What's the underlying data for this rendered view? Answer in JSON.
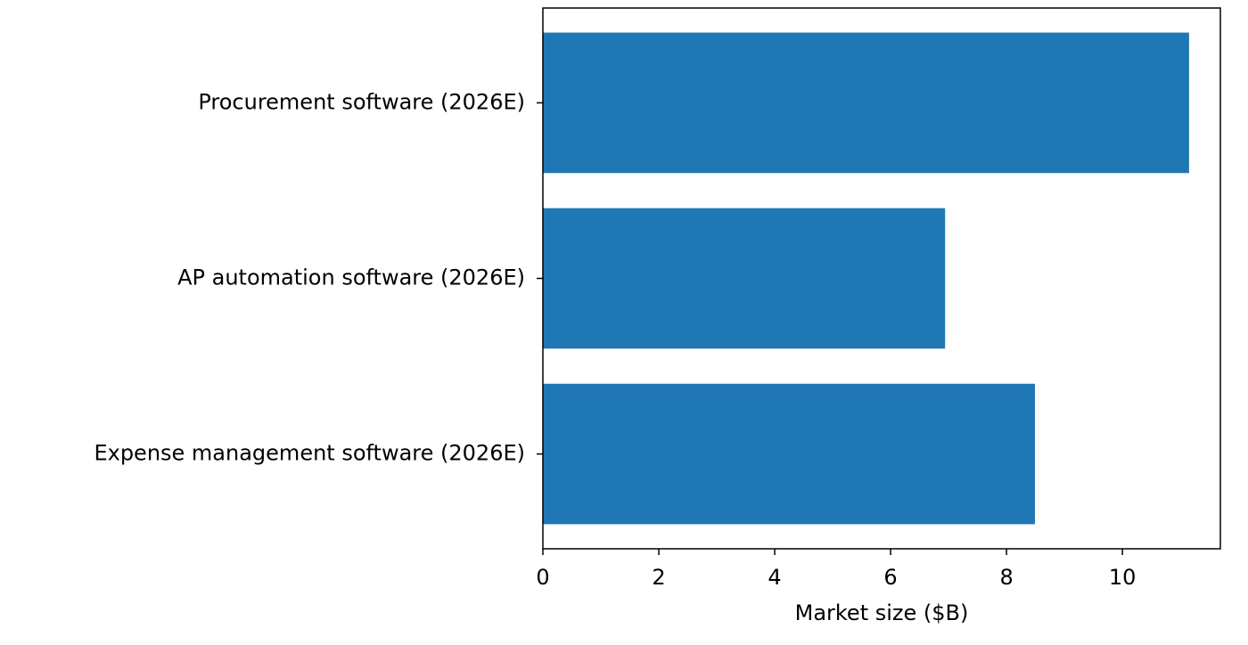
{
  "chart_data": {
    "type": "barh",
    "categories": [
      "Expense management software (2026E)",
      "AP automation software (2026E)",
      "Procurement software (2026E)"
    ],
    "values": [
      8.49,
      6.94,
      11.15
    ],
    "color": "#1f77b4",
    "xlabel": "Market size ($B)",
    "xlim": [
      0,
      11.69
    ],
    "xticks": [
      0,
      2,
      4,
      6,
      8,
      10
    ]
  }
}
